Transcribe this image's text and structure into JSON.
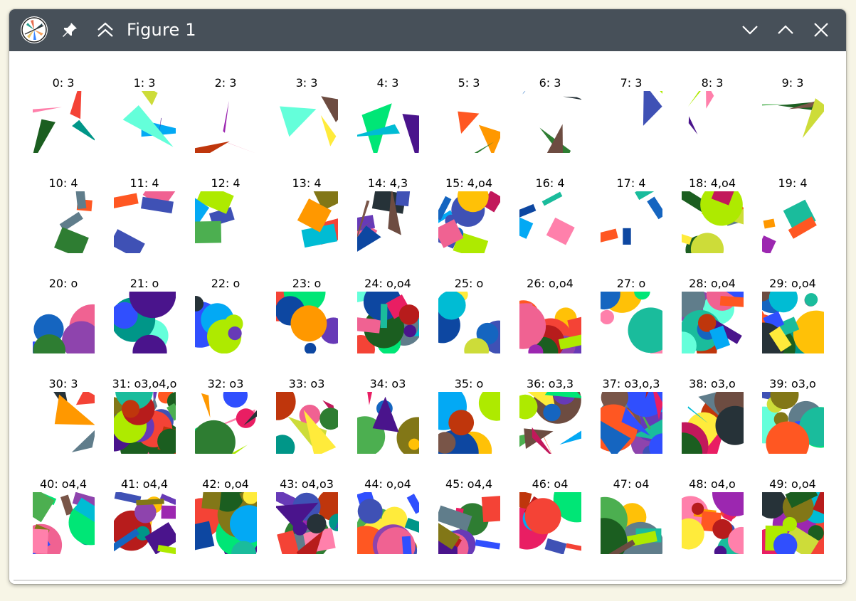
{
  "window": {
    "title": "Figure 1",
    "buttons": [
      "app-menu",
      "pin",
      "keep-above",
      "minimize",
      "maximize",
      "close"
    ]
  },
  "figure": {
    "subplot_titles": [
      "0: 3",
      "1: 3",
      "2: 3",
      "3: 3",
      "4: 3",
      "5: 3",
      "6: 3",
      "7: 3",
      "8: 3",
      "9: 3",
      "10: 4",
      "11: 4",
      "12: 4",
      "13: 4",
      "14: 4,3",
      "15: 4,o4",
      "16: 4",
      "17: 4",
      "18: 4,o4",
      "19: 4",
      "20: o",
      "21: o",
      "22: o",
      "23: o",
      "24: o,o4",
      "25: o",
      "26: o,o4",
      "27: o",
      "28: o,o4",
      "29: o,o4",
      "30: 3",
      "31: o3,o4,o",
      "32: o3",
      "33: o3",
      "34: o3",
      "35: o",
      "36: o3,3",
      "37: o3,o,3",
      "38: o3,o",
      "39: o3,o",
      "40: o4,4",
      "41: o4,4",
      "42: o,o4",
      "43: o4,o3",
      "44: o,o4",
      "45: o4,4",
      "46: o4",
      "47: o4",
      "48: o4,o",
      "49: o,o4"
    ]
  }
}
